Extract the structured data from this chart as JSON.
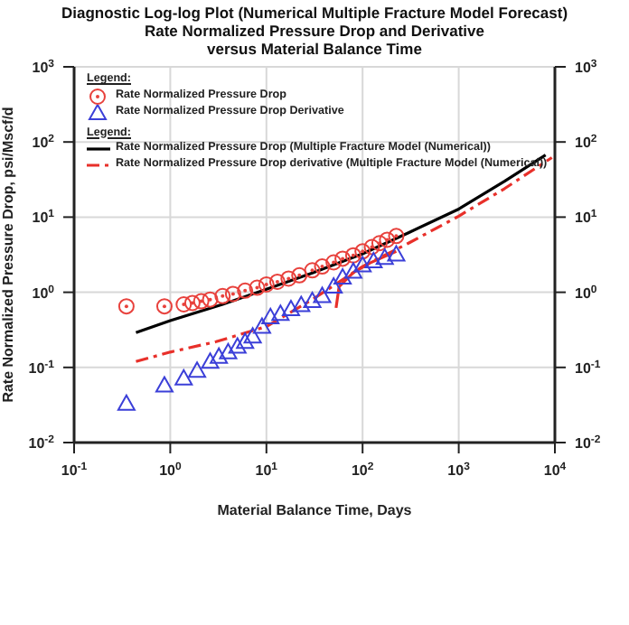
{
  "chart_data": {
    "type": "scatter",
    "title": "Diagnostic Log-log Plot (Numerical Multiple Fracture Model Forecast)",
    "subtitle": "Rate Normalized Pressure Drop and Derivative versus Material Balance Time",
    "xlabel": "Material Balance Time, Days",
    "ylabel": "Rate Normalized Pressure Drop, psi/Mscf/d",
    "legend_title": "Legend:",
    "log": "xy",
    "grid": true,
    "legend": "top left",
    "xlim": [
      0.1,
      10000
    ],
    "xticks": [
      {
        "value": 0.1,
        "label": "10$^{-1}$"
      },
      {
        "value": 1,
        "label": "10$^{0}$"
      },
      {
        "value": 10,
        "label": "10$^{1}$"
      },
      {
        "value": 100,
        "label": "10$^{2}$"
      },
      {
        "value": 1000,
        "label": "10$^{3}$"
      },
      {
        "value": 10000,
        "label": "10$^{4}$"
      }
    ],
    "ylim": [
      0.01,
      1000
    ],
    "yticks": [
      {
        "value": 0.01,
        "label": "10$^{-2}$"
      },
      {
        "value": 0.1,
        "label": "10$^{-1}$"
      },
      {
        "value": 1,
        "label": "10$^{0}$"
      },
      {
        "value": 10,
        "label": "10$^{1}$"
      },
      {
        "value": 100,
        "label": "10$^{2}$"
      },
      {
        "value": 1000,
        "label": "10$^{3}$"
      }
    ],
    "series": [
      {
        "name": "Rate Normalized Pressure Drop",
        "marker": "circle",
        "color": "#e8413c",
        "x": [
          0.35,
          0.87,
          1.38,
          1.7,
          2.1,
          2.6,
          3.5,
          4.5,
          6,
          8,
          10,
          13,
          17,
          22,
          30,
          38,
          50,
          62,
          80,
          100,
          125,
          150,
          180,
          224
        ],
        "values": [
          0.65,
          0.65,
          0.69,
          0.72,
          0.76,
          0.8,
          0.89,
          0.95,
          1.05,
          1.15,
          1.27,
          1.38,
          1.52,
          1.68,
          1.96,
          2.2,
          2.5,
          2.8,
          3.1,
          3.5,
          4.0,
          4.5,
          5.0,
          5.6
        ]
      },
      {
        "name": "Rate Normalized Pressure Drop Derivative",
        "marker": "triangle",
        "color": "#3b3fd8",
        "x": [
          0.35,
          0.87,
          1.38,
          1.9,
          2.6,
          3.2,
          4,
          5,
          6,
          7.2,
          9,
          11,
          14,
          18,
          23,
          30,
          38,
          50,
          62,
          80,
          100,
          130,
          170,
          224
        ],
        "values": [
          0.033,
          0.058,
          0.072,
          0.091,
          0.12,
          0.14,
          0.16,
          0.19,
          0.22,
          0.26,
          0.35,
          0.47,
          0.52,
          0.6,
          0.68,
          0.77,
          0.9,
          1.2,
          1.58,
          1.9,
          2.3,
          2.6,
          2.9,
          3.2
        ]
      },
      {
        "name": "Rate Normalized Pressure Drop (Multiple Fracture Model (Numerical))",
        "type": "line",
        "marker": "none",
        "line_style": "solid",
        "color": "#000000",
        "x": [
          0.44,
          1,
          3.5,
          10,
          30,
          100,
          300,
          1000,
          3000,
          8000
        ],
        "values": [
          0.29,
          0.42,
          0.69,
          1.1,
          1.8,
          3.25,
          6.2,
          12.8,
          30,
          67
        ]
      },
      {
        "name": "Rate Normalized Pressure Drop derivative (Multiple Fracture Model (Numerical))",
        "type": "line",
        "marker": "none",
        "line_style": "dashed",
        "color": "#e8302a",
        "x": [
          0.44,
          1,
          3,
          10,
          30,
          100,
          300,
          1000,
          3000,
          9300
        ],
        "values": [
          0.12,
          0.16,
          0.22,
          0.35,
          0.8,
          2.2,
          4.5,
          10.3,
          24,
          62
        ]
      },
      {
        "type": "line",
        "marker": "none",
        "line_style": "solid",
        "color": "#e8302a",
        "x": [
          53,
          57,
          80,
          118,
          224
        ],
        "values": [
          0.62,
          1.19,
          1.83,
          2.44,
          3.5
        ]
      }
    ]
  }
}
